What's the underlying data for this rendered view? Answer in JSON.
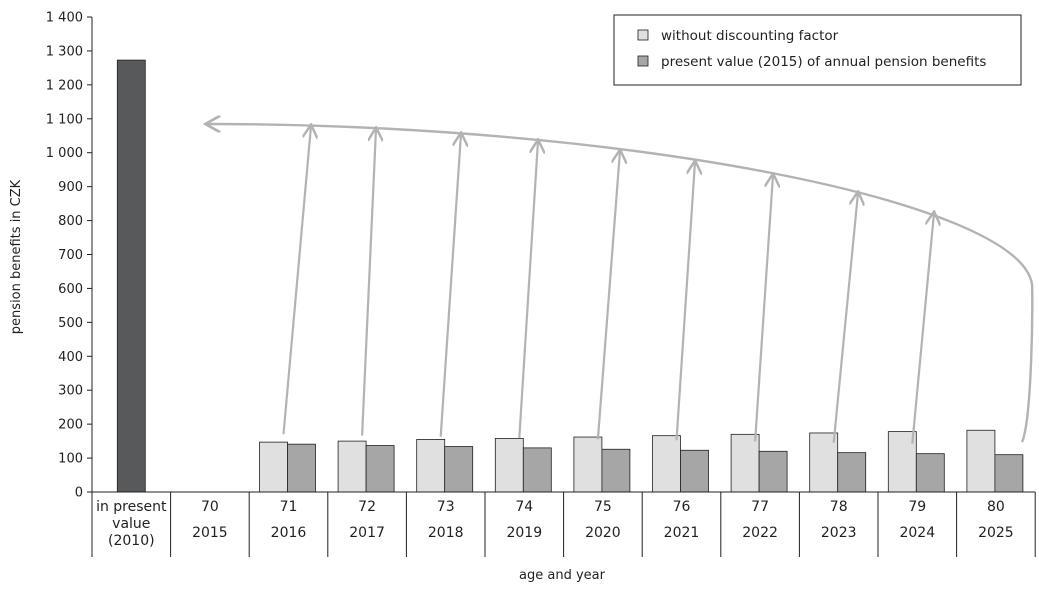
{
  "chart_data": {
    "type": "bar",
    "xlabel": "age and year",
    "ylabel": "pension benefits in CZK",
    "ylim": [
      0,
      1400
    ],
    "yticks": [
      "0",
      "100",
      "200",
      "300",
      "400",
      "500",
      "600",
      "700",
      "800",
      "900",
      "1 000",
      "1 100",
      "1 200",
      "1 300",
      "1 400"
    ],
    "legend_position": "top-right",
    "categories": [
      {
        "top": "in present value (2010)",
        "top_lines": [
          "in present",
          "value",
          "(2010)"
        ],
        "bottom": ""
      },
      {
        "top": "70",
        "top_lines": [
          "70"
        ],
        "bottom": "2015"
      },
      {
        "top": "71",
        "top_lines": [
          "71"
        ],
        "bottom": "2016"
      },
      {
        "top": "72",
        "top_lines": [
          "72"
        ],
        "bottom": "2017"
      },
      {
        "top": "73",
        "top_lines": [
          "73"
        ],
        "bottom": "2018"
      },
      {
        "top": "74",
        "top_lines": [
          "74"
        ],
        "bottom": "2019"
      },
      {
        "top": "75",
        "top_lines": [
          "75"
        ],
        "bottom": "2020"
      },
      {
        "top": "76",
        "top_lines": [
          "76"
        ],
        "bottom": "2021"
      },
      {
        "top": "77",
        "top_lines": [
          "77"
        ],
        "bottom": "2022"
      },
      {
        "top": "78",
        "top_lines": [
          "78"
        ],
        "bottom": "2023"
      },
      {
        "top": "79",
        "top_lines": [
          "79"
        ],
        "bottom": "2024"
      },
      {
        "top": "80",
        "top_lines": [
          "80"
        ],
        "bottom": "2025"
      }
    ],
    "present_value_2010": 1273,
    "series": [
      {
        "name": "without discounting factor",
        "color": "#e0e0e0",
        "values": [
          null,
          null,
          147,
          150,
          155,
          158,
          162,
          166,
          170,
          174,
          178,
          182
        ]
      },
      {
        "name": "present value (2015) of annual pension benefits",
        "color": "#a6a6a6",
        "values": [
          null,
          null,
          141,
          137,
          134,
          130,
          126,
          123,
          120,
          116,
          113,
          110
        ]
      }
    ],
    "present_value_color": "#58595b"
  }
}
